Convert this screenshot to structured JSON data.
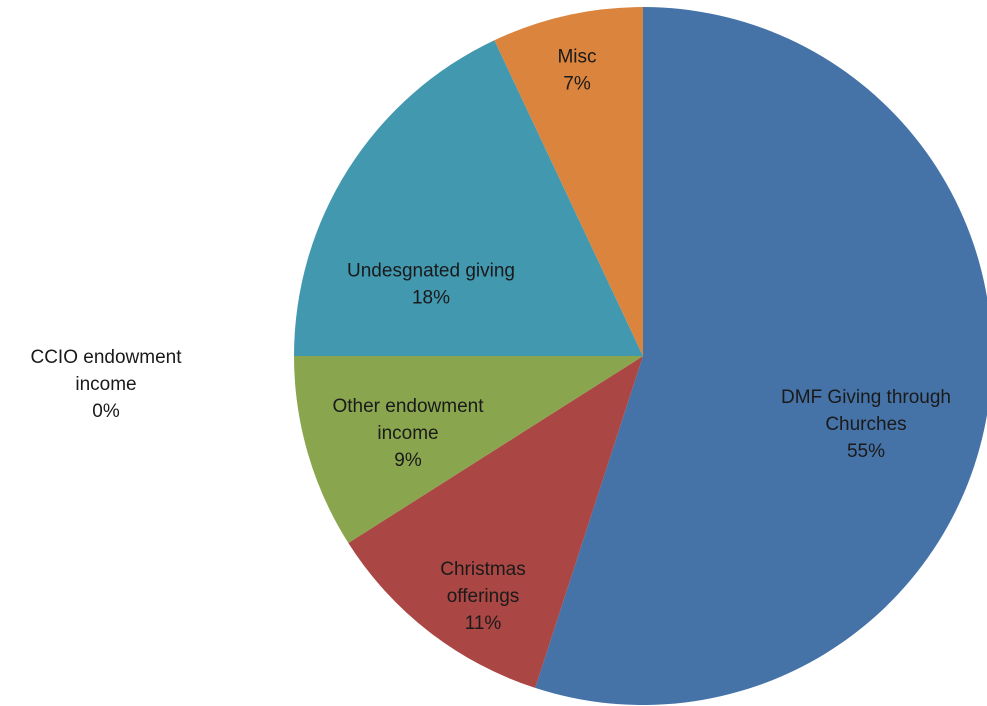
{
  "chart_data": {
    "type": "pie",
    "title": "",
    "start_angle_deg": 0,
    "direction": "clockwise",
    "show_legend": false,
    "slices": [
      {
        "key": "dmf",
        "label_lines": [
          "DMF Giving through",
          "Churches"
        ],
        "value": 55,
        "percent_text": "55%",
        "color": "#4572A7"
      },
      {
        "key": "christmas",
        "label_lines": [
          "Christmas",
          "offerings"
        ],
        "value": 11,
        "percent_text": "11%",
        "color": "#AA4643"
      },
      {
        "key": "other-endowment",
        "label_lines": [
          "Other endowment",
          "income"
        ],
        "value": 9,
        "percent_text": "9%",
        "color": "#89A54E"
      },
      {
        "key": "ccio-endowment",
        "label_lines": [
          "CCIO endowment",
          "income"
        ],
        "value": 0,
        "percent_text": "0%",
        "color": "#71588F"
      },
      {
        "key": "undesignated",
        "label_lines": [
          "Undesgnated giving"
        ],
        "value": 18,
        "percent_text": "18%",
        "color": "#4198AF"
      },
      {
        "key": "misc",
        "label_lines": [
          "Misc"
        ],
        "value": 7,
        "percent_text": "7%",
        "color": "#DB843D"
      }
    ]
  }
}
